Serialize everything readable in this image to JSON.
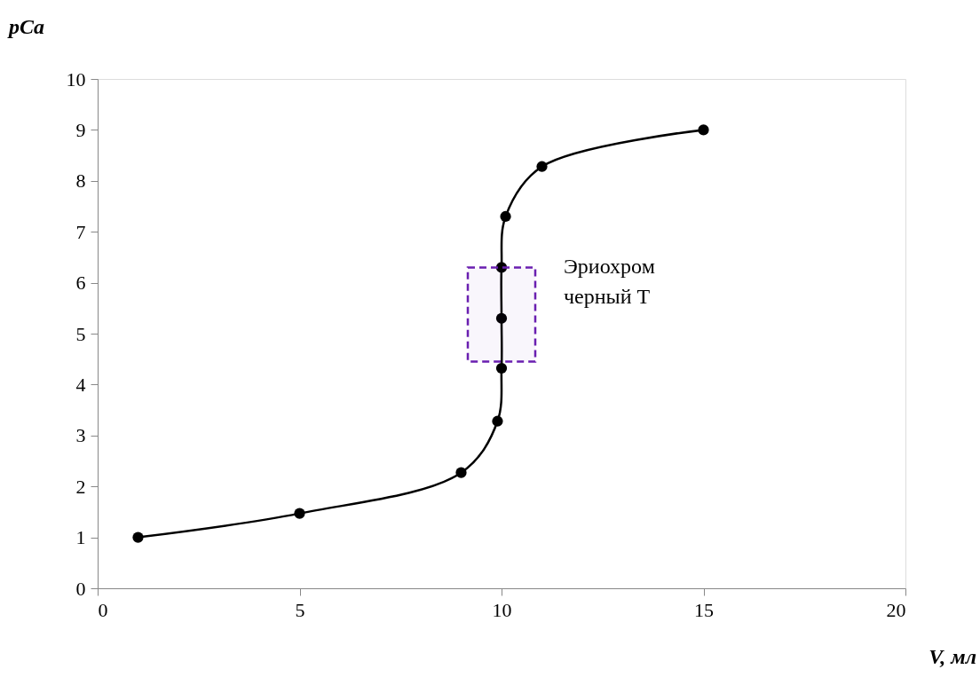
{
  "chart_data": {
    "type": "line",
    "xlabel": "V, мл",
    "ylabel": "pCa",
    "x": [
      1,
      5,
      9,
      9.9,
      10,
      10,
      10,
      10.1,
      11,
      15
    ],
    "series": [
      {
        "color": "#000000",
        "values": [
          1,
          1.47,
          2.27,
          3.28,
          4.32,
          5.3,
          6.3,
          7.3,
          8.28,
          9
        ]
      }
    ],
    "marker": "circle",
    "line_style": "solid",
    "xlim": [
      0,
      20
    ],
    "xticks": [
      0,
      5,
      10,
      15,
      20
    ],
    "ylim": [
      0,
      10
    ],
    "yticks": [
      0,
      1,
      2,
      3,
      4,
      5,
      6,
      7,
      8,
      9,
      10
    ],
    "grid": false,
    "bands": [
      {
        "axis": "y",
        "from": 4.45,
        "to": 6.3,
        "label": "Эриохром черный Т",
        "color": "#6a1fb0"
      }
    ]
  }
}
